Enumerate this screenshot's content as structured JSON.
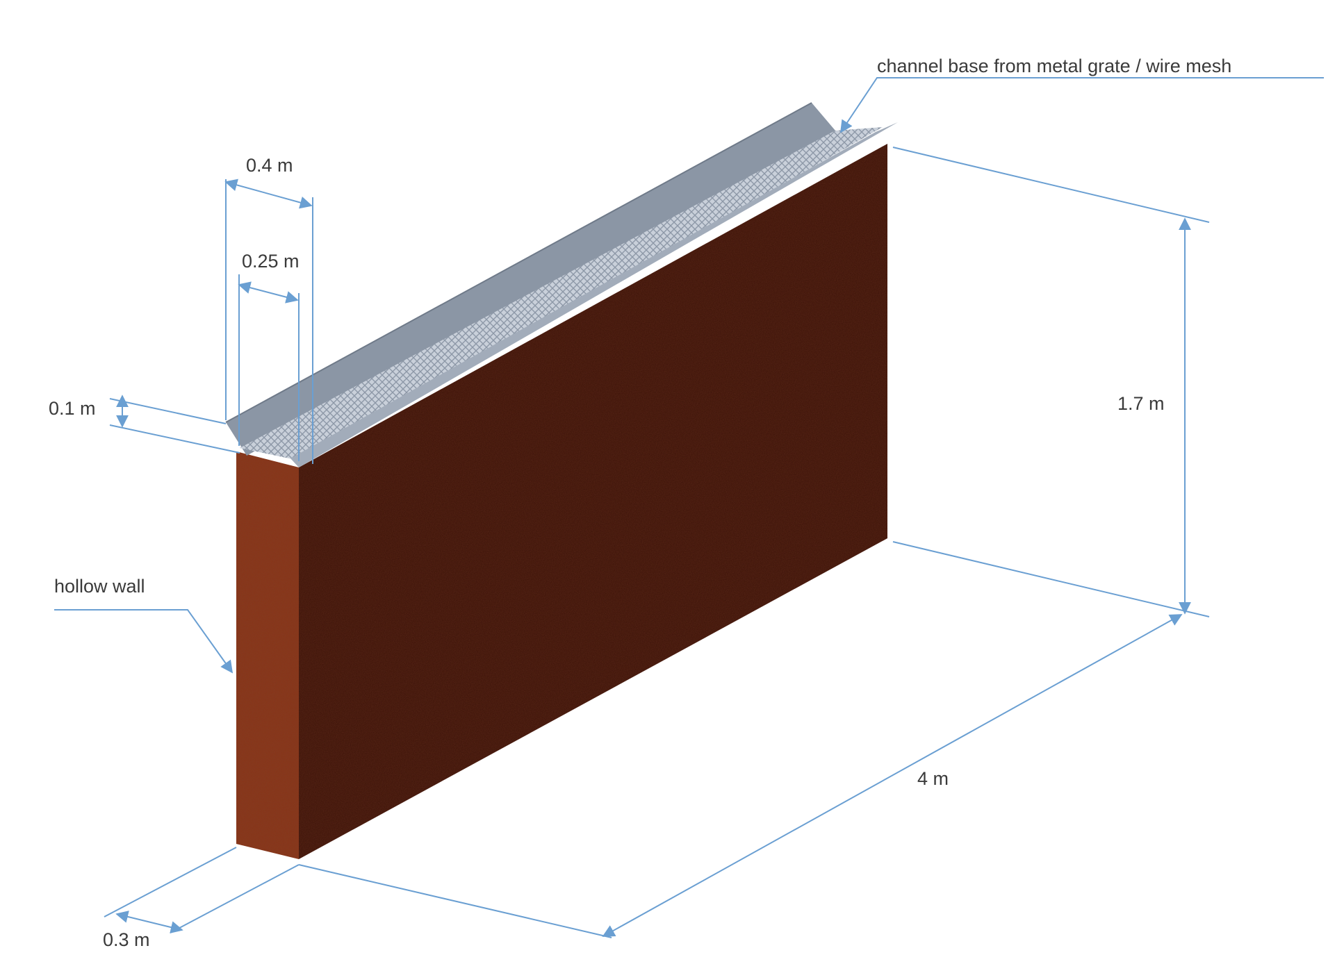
{
  "labels": {
    "channel_base": "channel base from metal grate / wire mesh",
    "hollow_wall": "hollow wall"
  },
  "dimensions": {
    "channel_outer_width": "0.4 m",
    "channel_inner_width": "0.25 m",
    "channel_depth": "0.1 m",
    "wall_height": "1.7 m",
    "wall_length": "4 m",
    "wall_thickness": "0.3 m"
  },
  "colors": {
    "wall_front": "#3b1209",
    "wall_side": "#8a3418",
    "channel_metal": "#8e99a8",
    "mesh": "#c4ccd6",
    "dimension_line": "#6a9fd2"
  }
}
